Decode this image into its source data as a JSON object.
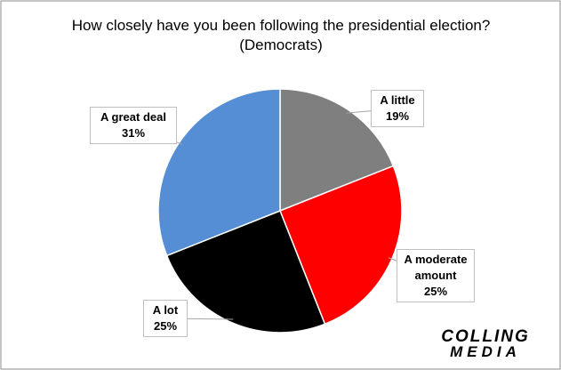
{
  "chart_data": {
    "type": "pie",
    "title": "How closely have you been following the presidential election?",
    "subtitle": "(Democrats)",
    "categories": [
      "A little",
      "A moderate amount",
      "A lot",
      "A great deal"
    ],
    "values": [
      19,
      25,
      25,
      31
    ],
    "value_labels": [
      "19%",
      "25%",
      "25%",
      "31%"
    ],
    "colors": [
      "#7f7f7f",
      "#ff0000",
      "#000000",
      "#558ed5"
    ]
  },
  "logo": {
    "line1": "COLLING",
    "line2": "MEDIA"
  }
}
